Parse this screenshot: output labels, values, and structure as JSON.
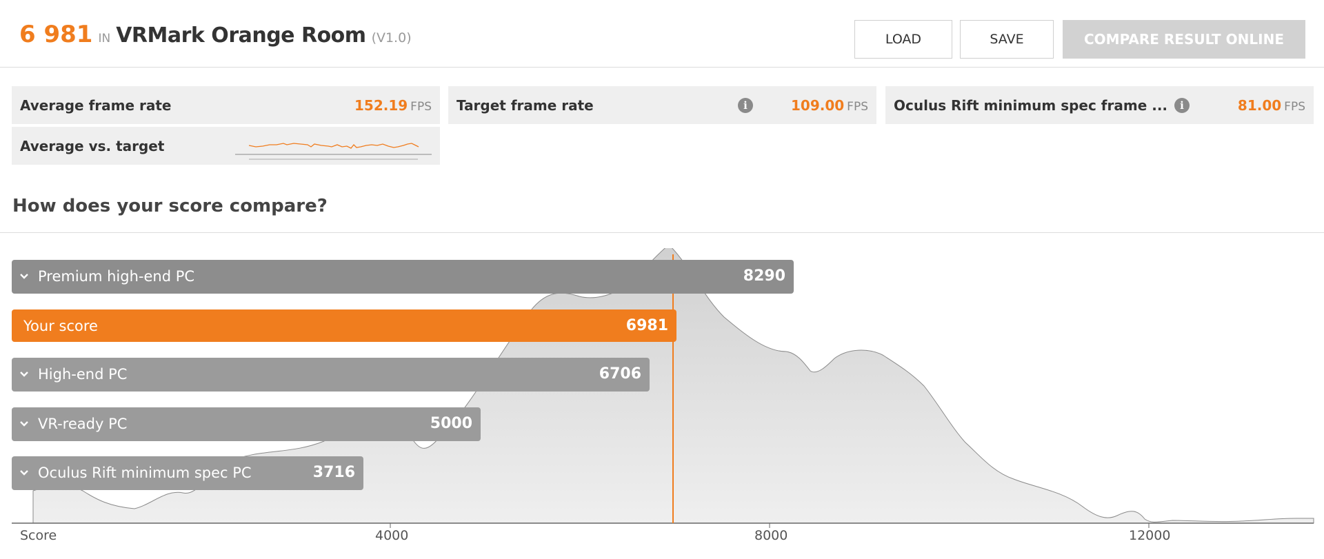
{
  "header": {
    "score": "6 981",
    "in_label": "IN",
    "benchmark": "VRMark Orange Room",
    "version": "(V1.0)",
    "load_label": "LOAD",
    "save_label": "SAVE",
    "compare_label": "COMPARE RESULT ONLINE"
  },
  "stats": {
    "avg_frame_rate": {
      "label": "Average frame rate",
      "value": "152.19",
      "unit": "FPS"
    },
    "target_frame_rate": {
      "label": "Target frame rate",
      "value": "109.00",
      "unit": "FPS",
      "icon": "info-icon"
    },
    "oculus_min": {
      "label": "Oculus Rift minimum spec frame ...",
      "value": "81.00",
      "unit": "FPS",
      "icon": "info-icon"
    },
    "avg_vs_target": {
      "label": "Average vs. target"
    }
  },
  "comparison": {
    "title": "How does your score compare?",
    "axis_label": "Score",
    "ticks": [
      "4000",
      "8000",
      "12000"
    ],
    "bars": [
      {
        "label": "Premium high-end PC",
        "value": "8290",
        "expandable": true
      },
      {
        "label": "Your score",
        "value": "6981",
        "expandable": false
      },
      {
        "label": "High-end PC",
        "value": "6706",
        "expandable": true
      },
      {
        "label": "VR-ready PC",
        "value": "5000",
        "expandable": true
      },
      {
        "label": "Oculus Rift minimum spec PC",
        "value": "3716",
        "expandable": true
      }
    ]
  },
  "colors": {
    "accent": "#f07d1e",
    "bar_gray": "#9b9b9b",
    "distribution": "#dddddd"
  }
}
